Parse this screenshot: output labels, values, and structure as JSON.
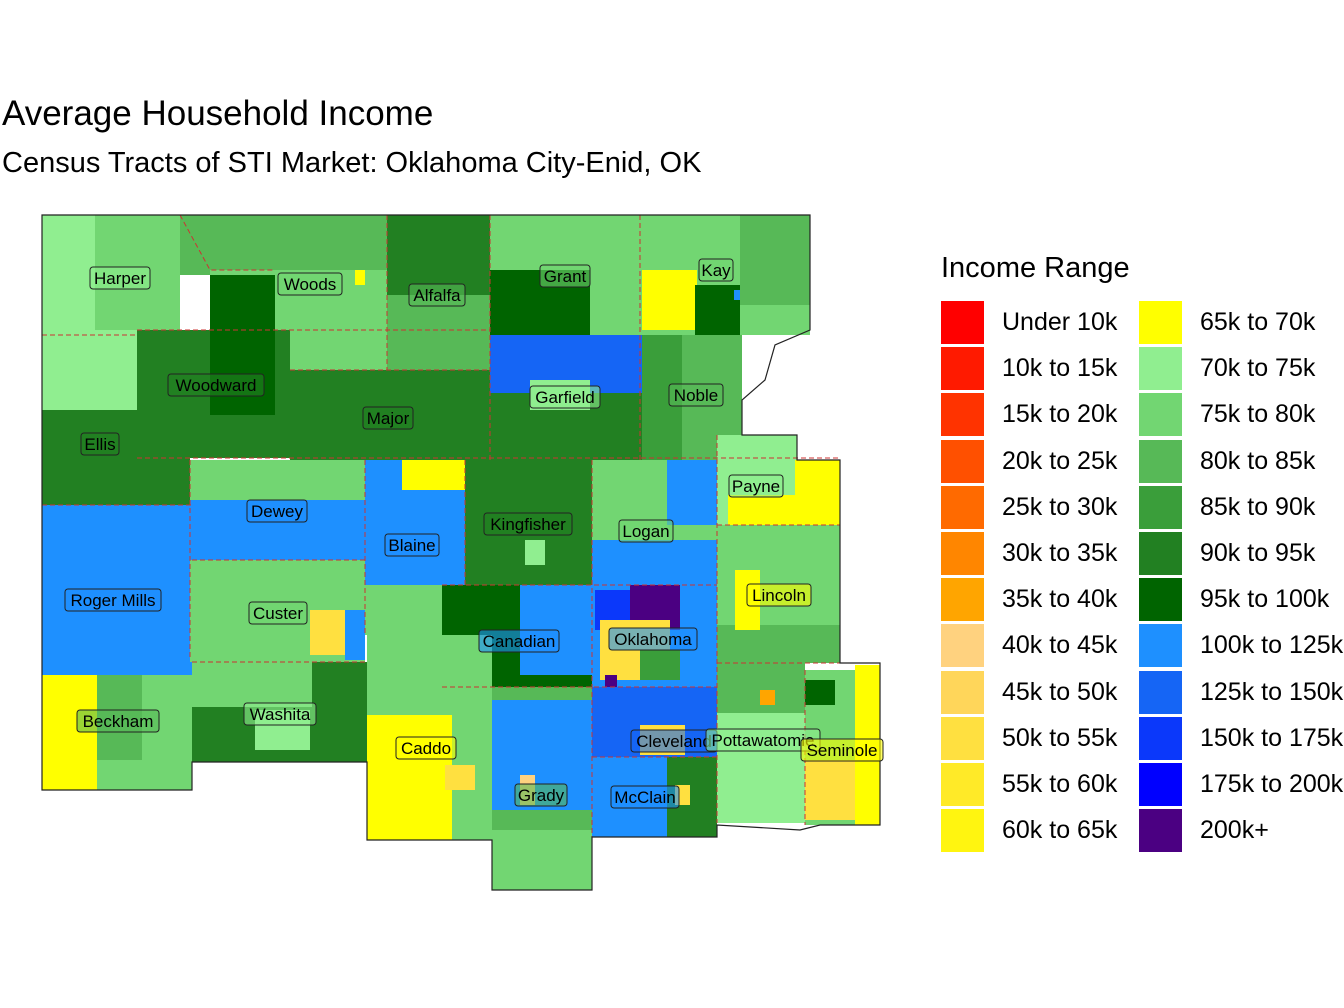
{
  "title": "Average Household Income",
  "subtitle": "Census Tracts of STI Market: Oklahoma City-Enid, OK",
  "legend": {
    "title": "Income Range",
    "items": [
      {
        "label": "Under 10k",
        "color": "#FF0000"
      },
      {
        "label": "10k to 15k",
        "color": "#FF1A00"
      },
      {
        "label": "15k to 20k",
        "color": "#FF3300"
      },
      {
        "label": "20k to 25k",
        "color": "#FF5000"
      },
      {
        "label": "25k to 30k",
        "color": "#FF6A00"
      },
      {
        "label": "30k to 35k",
        "color": "#FF8600"
      },
      {
        "label": "35k to 40k",
        "color": "#FFA500"
      },
      {
        "label": "40k to 45k",
        "color": "#FFD27F"
      },
      {
        "label": "45k to 50k",
        "color": "#FFD65A"
      },
      {
        "label": "50k to 55k",
        "color": "#FFE040"
      },
      {
        "label": "55k to 60k",
        "color": "#FFEA28"
      },
      {
        "label": "60k to 65k",
        "color": "#FFF510"
      },
      {
        "label": "65k to 70k",
        "color": "#FFFF00"
      },
      {
        "label": "70k to 75k",
        "color": "#90EE90"
      },
      {
        "label": "75k to 80k",
        "color": "#72D672"
      },
      {
        "label": "80k to 85k",
        "color": "#57B957"
      },
      {
        "label": "85k to 90k",
        "color": "#3A9E3A"
      },
      {
        "label": "90k to 95k",
        "color": "#228022"
      },
      {
        "label": "95k to 100k",
        "color": "#006400"
      },
      {
        "label": "100k to 125k",
        "color": "#1E90FF"
      },
      {
        "label": "125k to 150k",
        "color": "#1565F5"
      },
      {
        "label": "150k to 175k",
        "color": "#0B38FA"
      },
      {
        "label": "175k to 200k",
        "color": "#0000FF"
      },
      {
        "label": "200k+",
        "color": "#4B0082"
      }
    ]
  },
  "counties": [
    {
      "name": "Harper"
    },
    {
      "name": "Woods"
    },
    {
      "name": "Alfalfa"
    },
    {
      "name": "Grant"
    },
    {
      "name": "Kay"
    },
    {
      "name": "Woodward"
    },
    {
      "name": "Major"
    },
    {
      "name": "Garfield"
    },
    {
      "name": "Noble"
    },
    {
      "name": "Ellis"
    },
    {
      "name": "Dewey"
    },
    {
      "name": "Blaine"
    },
    {
      "name": "Kingfisher"
    },
    {
      "name": "Logan"
    },
    {
      "name": "Payne"
    },
    {
      "name": "Roger Mills"
    },
    {
      "name": "Custer"
    },
    {
      "name": "Canadian"
    },
    {
      "name": "Oklahoma"
    },
    {
      "name": "Lincoln"
    },
    {
      "name": "Beckham"
    },
    {
      "name": "Washita"
    },
    {
      "name": "Caddo"
    },
    {
      "name": "Cleveland"
    },
    {
      "name": "Pottawatomie"
    },
    {
      "name": "Seminole"
    },
    {
      "name": "Grady"
    },
    {
      "name": "McClain"
    }
  ]
}
